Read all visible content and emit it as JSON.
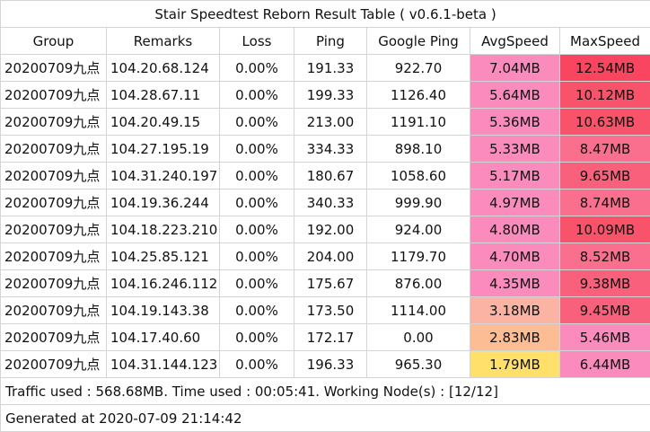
{
  "title": "Stair Speedtest Reborn Result Table ( v0.6.1-beta )",
  "headers": [
    "Group",
    "Remarks",
    "Loss",
    "Ping",
    "Google Ping",
    "AvgSpeed",
    "MaxSpeed"
  ],
  "rows": [
    {
      "group": "20200709九点",
      "remarks": "104.20.68.124",
      "loss": "0.00%",
      "ping": "191.33",
      "gping": "922.70",
      "avg": "7.04MB",
      "avg_color": "#fb8bbd",
      "max": "12.54MB",
      "max_color": "#f9455f"
    },
    {
      "group": "20200709九点",
      "remarks": "104.28.67.11",
      "loss": "0.00%",
      "ping": "199.33",
      "gping": "1126.40",
      "avg": "5.64MB",
      "avg_color": "#fb8bbd",
      "max": "10.12MB",
      "max_color": "#f9536c"
    },
    {
      "group": "20200709九点",
      "remarks": "104.20.49.15",
      "loss": "0.00%",
      "ping": "213.00",
      "gping": "1191.10",
      "avg": "5.36MB",
      "avg_color": "#fb8bbd",
      "max": "10.63MB",
      "max_color": "#f9536c"
    },
    {
      "group": "20200709九点",
      "remarks": "104.27.195.19",
      "loss": "0.00%",
      "ping": "334.33",
      "gping": "898.10",
      "avg": "5.33MB",
      "avg_color": "#fb8bbd",
      "max": "8.47MB",
      "max_color": "#fa6f8e"
    },
    {
      "group": "20200709九点",
      "remarks": "104.31.240.197",
      "loss": "0.00%",
      "ping": "180.67",
      "gping": "1058.60",
      "avg": "5.17MB",
      "avg_color": "#fb8bbd",
      "max": "9.65MB",
      "max_color": "#f9607c"
    },
    {
      "group": "20200709九点",
      "remarks": "104.19.36.244",
      "loss": "0.00%",
      "ping": "340.33",
      "gping": "999.90",
      "avg": "4.97MB",
      "avg_color": "#fb8bbd",
      "max": "8.74MB",
      "max_color": "#fa6f8e"
    },
    {
      "group": "20200709九点",
      "remarks": "104.18.223.210",
      "loss": "0.00%",
      "ping": "192.00",
      "gping": "924.00",
      "avg": "4.80MB",
      "avg_color": "#fb8bbd",
      "max": "10.09MB",
      "max_color": "#f9536c"
    },
    {
      "group": "20200709九点",
      "remarks": "104.25.85.121",
      "loss": "0.00%",
      "ping": "204.00",
      "gping": "1179.70",
      "avg": "4.70MB",
      "avg_color": "#fb8bbd",
      "max": "8.52MB",
      "max_color": "#fa6f8e"
    },
    {
      "group": "20200709九点",
      "remarks": "104.16.246.112",
      "loss": "0.00%",
      "ping": "175.67",
      "gping": "876.00",
      "avg": "4.35MB",
      "avg_color": "#fb8bbd",
      "max": "9.38MB",
      "max_color": "#f9607c"
    },
    {
      "group": "20200709九点",
      "remarks": "104.19.143.38",
      "loss": "0.00%",
      "ping": "173.50",
      "gping": "1114.00",
      "avg": "3.18MB",
      "avg_color": "#fbb4a3",
      "max": "9.45MB",
      "max_color": "#f9607c"
    },
    {
      "group": "20200709九点",
      "remarks": "104.17.40.60",
      "loss": "0.00%",
      "ping": "172.17",
      "gping": "0.00",
      "avg": "2.83MB",
      "avg_color": "#fcbd94",
      "max": "5.46MB",
      "max_color": "#fb8bbd"
    },
    {
      "group": "20200709九点",
      "remarks": "104.31.144.123",
      "loss": "0.00%",
      "ping": "196.33",
      "gping": "965.30",
      "avg": "1.79MB",
      "avg_color": "#fee06a",
      "max": "6.44MB",
      "max_color": "#fb8bbd"
    }
  ],
  "footer_traffic": "Traffic used : 568.68MB. Time used : 00:05:41. Working Node(s) : [12/12]",
  "footer_generated": "Generated at 2020-07-09 21:14:42"
}
